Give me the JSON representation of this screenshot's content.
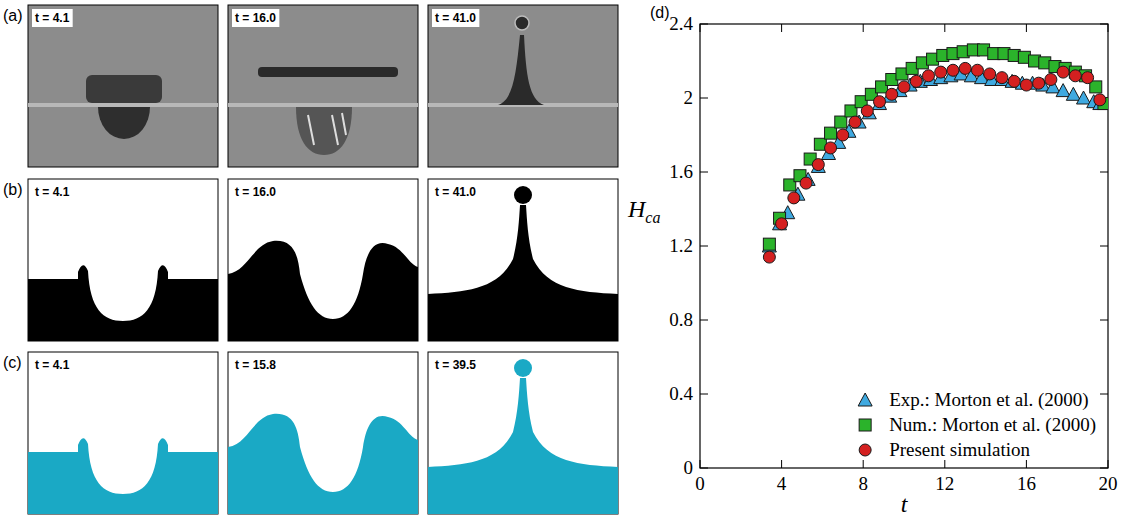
{
  "figure": {
    "panels": [
      {
        "label": "(a)",
        "frames": [
          "t = 4.1",
          "t = 16.0",
          "t = 41.0"
        ]
      },
      {
        "label": "(b)",
        "frames": [
          "t = 4.1",
          "t = 16.0",
          "t = 41.0"
        ]
      },
      {
        "label": "(c)",
        "frames": [
          "t = 4.1",
          "t = 15.8",
          "t = 39.5"
        ]
      }
    ],
    "chart_label": "(d)"
  },
  "chart_data": {
    "type": "scatter",
    "xlabel": "t",
    "ylabel": "H",
    "ylabel_subscript": "ca",
    "xlim": [
      0,
      20
    ],
    "ylim": [
      0,
      2.4
    ],
    "xticks": [
      0,
      4,
      8,
      12,
      16,
      20
    ],
    "yticks": [
      0,
      0.4,
      0.8,
      1.2,
      1.6,
      2,
      2.4
    ],
    "legend": "lower right",
    "series": [
      {
        "name": "Exp.: Morton et al. (2000)",
        "color": "#3fa9e0",
        "marker": "triangle",
        "x": [
          3.4,
          3.9,
          4.3,
          4.8,
          5.3,
          5.8,
          6.3,
          6.8,
          7.3,
          7.8,
          8.3,
          8.8,
          9.3,
          9.8,
          10.3,
          10.8,
          11.3,
          11.8,
          12.3,
          12.8,
          13.3,
          13.8,
          14.3,
          14.8,
          15.3,
          15.8,
          16.3,
          16.8,
          17.3,
          17.8,
          18.3,
          18.8,
          19.3,
          19.6
        ],
        "values": [
          1.2,
          1.32,
          1.38,
          1.48,
          1.56,
          1.63,
          1.7,
          1.76,
          1.82,
          1.87,
          1.92,
          1.97,
          2.01,
          2.04,
          2.07,
          2.09,
          2.1,
          2.11,
          2.12,
          2.13,
          2.12,
          2.11,
          2.1,
          2.1,
          2.09,
          2.08,
          2.08,
          2.07,
          2.06,
          2.04,
          2.02,
          2.0,
          1.98,
          1.97
        ]
      },
      {
        "name": "Num.: Morton et al. (2000)",
        "color": "#2bb32b",
        "marker": "square",
        "x": [
          3.4,
          3.9,
          4.4,
          4.9,
          5.4,
          5.9,
          6.4,
          6.9,
          7.4,
          7.9,
          8.4,
          8.9,
          9.4,
          9.9,
          10.4,
          10.9,
          11.4,
          11.9,
          12.4,
          12.9,
          13.4,
          13.9,
          14.4,
          14.9,
          15.4,
          15.9,
          16.4,
          16.9,
          17.4,
          17.9,
          18.4,
          18.9,
          19.4,
          19.8
        ],
        "values": [
          1.21,
          1.35,
          1.53,
          1.58,
          1.67,
          1.75,
          1.81,
          1.87,
          1.93,
          1.98,
          2.02,
          2.06,
          2.1,
          2.13,
          2.16,
          2.19,
          2.21,
          2.23,
          2.24,
          2.25,
          2.26,
          2.26,
          2.24,
          2.24,
          2.23,
          2.22,
          2.2,
          2.19,
          2.17,
          2.16,
          2.14,
          2.12,
          2.06,
          1.97
        ]
      },
      {
        "name": "Present simulation",
        "color": "#d42020",
        "marker": "circle",
        "x": [
          3.4,
          4.0,
          4.6,
          5.2,
          5.8,
          6.4,
          7.0,
          7.6,
          8.2,
          8.8,
          9.4,
          10.0,
          10.6,
          11.2,
          11.8,
          12.4,
          13.0,
          13.6,
          14.2,
          14.8,
          15.4,
          16.0,
          16.6,
          17.2,
          17.8,
          18.4,
          19.0,
          19.6
        ],
        "values": [
          1.14,
          1.32,
          1.46,
          1.54,
          1.64,
          1.73,
          1.8,
          1.87,
          1.93,
          1.98,
          2.02,
          2.06,
          2.09,
          2.12,
          2.14,
          2.15,
          2.16,
          2.15,
          2.13,
          2.11,
          2.09,
          2.07,
          2.08,
          2.1,
          2.14,
          2.12,
          2.11,
          1.99
        ]
      }
    ]
  }
}
